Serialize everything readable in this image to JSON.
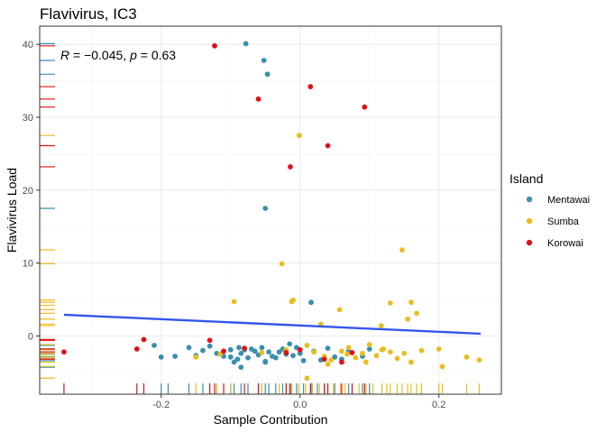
{
  "chart_data": {
    "type": "scatter",
    "title": "Flavivirus, IC3",
    "xlabel": "Sample Contribution",
    "ylabel": "Flavivirus Load",
    "xlim": [
      -0.375,
      0.29
    ],
    "ylim": [
      -8,
      42.5
    ],
    "x_ticks": [
      -0.2,
      0.0,
      0.2
    ],
    "x_tick_labels": [
      "-0.2",
      "0.0",
      "0.2"
    ],
    "y_ticks": [
      0,
      10,
      20,
      30,
      40
    ],
    "y_tick_labels": [
      "0",
      "10",
      "20",
      "30",
      "40"
    ],
    "grid": true,
    "annotation": {
      "r_value": "−0.045",
      "p_value": "0.63"
    },
    "legend": {
      "title": "Island",
      "position": "right",
      "items": [
        {
          "label": "Mentawai",
          "color": "#3a8fae"
        },
        {
          "label": "Sumba",
          "color": "#e9bd1f"
        },
        {
          "label": "Korowai",
          "color": "#e0101a"
        }
      ]
    },
    "regression_line": {
      "color": "#3355ee",
      "x": [
        -0.34,
        0.26
      ],
      "y": [
        2.9,
        0.3
      ]
    },
    "series": [
      {
        "name": "Mentawai",
        "color": "#3a8fae",
        "x": [
          -0.078,
          -0.052,
          -0.047,
          -0.05,
          0.016,
          -0.21,
          -0.2,
          -0.18,
          -0.16,
          -0.15,
          -0.13,
          -0.12,
          -0.11,
          -0.1,
          -0.095,
          -0.09,
          -0.088,
          -0.085,
          -0.08,
          -0.075,
          -0.07,
          -0.065,
          -0.06,
          -0.055,
          -0.05,
          -0.045,
          -0.04,
          -0.035,
          -0.03,
          -0.025,
          -0.02,
          -0.015,
          -0.01,
          -0.005,
          0.0,
          0.005,
          0.02,
          0.03,
          0.04,
          0.05,
          0.06,
          0.07,
          0.09,
          0.1,
          -0.14,
          -0.085,
          -0.05,
          -0.1
        ],
        "y": [
          40.1,
          37.8,
          35.9,
          17.5,
          4.6,
          -1.3,
          -2.9,
          -2.8,
          -1.6,
          -2.7,
          -1.4,
          -2.4,
          -2.8,
          -1.9,
          -3.6,
          -3.2,
          -1.6,
          -2.4,
          -1.9,
          -3.0,
          -1.8,
          -2.1,
          -2.6,
          -1.6,
          -3.5,
          -2.2,
          -2.8,
          -3.0,
          -2.2,
          -1.8,
          -2.5,
          -1.1,
          -2.7,
          -1.6,
          -2.4,
          -3.4,
          -2.1,
          -3.3,
          -1.7,
          -2.9,
          -3.2,
          -2.1,
          -2.8,
          -1.8,
          -2.0,
          -4.3,
          -3.6,
          -2.9
        ]
      },
      {
        "name": "Sumba",
        "color": "#e9bd1f",
        "x": [
          -0.001,
          -0.026,
          -0.095,
          -0.012,
          -0.01,
          0.057,
          0.13,
          0.147,
          0.16,
          0.155,
          0.168,
          0.117,
          0.03,
          -0.15,
          -0.115,
          -0.055,
          -0.02,
          0.01,
          0.02,
          0.035,
          0.045,
          0.06,
          0.07,
          0.08,
          0.09,
          0.1,
          0.11,
          0.12,
          0.13,
          0.14,
          0.15,
          0.16,
          0.175,
          0.2,
          0.24,
          0.258,
          0.205,
          0.01,
          0.04,
          0.118,
          0.095,
          0.068
        ],
        "y": [
          27.5,
          9.9,
          4.7,
          4.7,
          4.9,
          3.6,
          4.5,
          11.8,
          4.6,
          2.3,
          3.1,
          1.4,
          1.6,
          -2.9,
          -2.5,
          -2.3,
          -1.9,
          -1.3,
          -2.2,
          -2.8,
          -3.3,
          -2.1,
          -1.6,
          -3.0,
          -2.4,
          -1.2,
          -2.7,
          -1.8,
          -2.2,
          -3.1,
          -2.4,
          -3.6,
          -2.0,
          -1.8,
          -2.9,
          -3.3,
          -4.2,
          -5.8,
          -3.9,
          -1.9,
          -3.6,
          -2.5
        ]
      },
      {
        "name": "Korowai",
        "color": "#e0101a",
        "x": [
          -0.123,
          -0.06,
          0.015,
          0.093,
          -0.014,
          0.04,
          -0.34,
          -0.235,
          -0.225,
          -0.13,
          -0.11,
          -0.08,
          -0.02,
          0.0,
          0.035,
          0.06,
          0.075
        ],
        "y": [
          39.8,
          32.5,
          34.2,
          31.4,
          23.2,
          26.1,
          -2.2,
          -1.8,
          -0.5,
          -0.6,
          -2.1,
          -1.7,
          -2.3,
          -1.9,
          -3.2,
          -3.6,
          -2.3
        ]
      }
    ],
    "rug_x": {
      "Mentawai": [
        -0.2,
        -0.19,
        -0.16,
        -0.14,
        -0.12,
        -0.1,
        -0.095,
        -0.085,
        -0.075,
        -0.06,
        -0.05,
        -0.045,
        -0.035,
        -0.025,
        -0.015,
        -0.005,
        0.005,
        0.016,
        0.025,
        0.035,
        0.05,
        0.07,
        0.09,
        0.1
      ],
      "Sumba": [
        -0.15,
        -0.12,
        -0.1,
        -0.055,
        -0.03,
        -0.02,
        -0.012,
        -0.002,
        0.008,
        0.018,
        0.028,
        0.04,
        0.048,
        0.058,
        0.065,
        0.075,
        0.085,
        0.095,
        0.105,
        0.118,
        0.125,
        0.13,
        0.14,
        0.147,
        0.155,
        0.16,
        0.168,
        0.175,
        0.2,
        0.205,
        0.24,
        0.258
      ],
      "Korowai": [
        -0.34,
        -0.235,
        -0.225,
        -0.13,
        -0.123,
        -0.11,
        -0.08,
        -0.06,
        -0.02,
        -0.014,
        0.015,
        0.035,
        0.04,
        0.06,
        0.075,
        0.093
      ]
    },
    "rug_y": {
      "Mentawai": [
        40.1,
        37.8,
        35.9,
        17.5,
        -1.3,
        -1.8,
        -2.5,
        -2.9,
        -3.4,
        -4.3
      ],
      "Sumba": [
        27.5,
        11.8,
        9.9,
        4.9,
        4.6,
        4.2,
        3.6,
        3.1,
        2.3,
        1.6,
        1.4,
        -1.2,
        -1.9,
        -2.4,
        -2.8,
        -3.1,
        -3.6,
        -4.2,
        -5.8
      ],
      "Korowai": [
        39.8,
        34.2,
        32.5,
        31.4,
        26.1,
        23.2,
        -0.5,
        -0.6,
        -1.8,
        -2.2,
        -3.2
      ]
    }
  }
}
